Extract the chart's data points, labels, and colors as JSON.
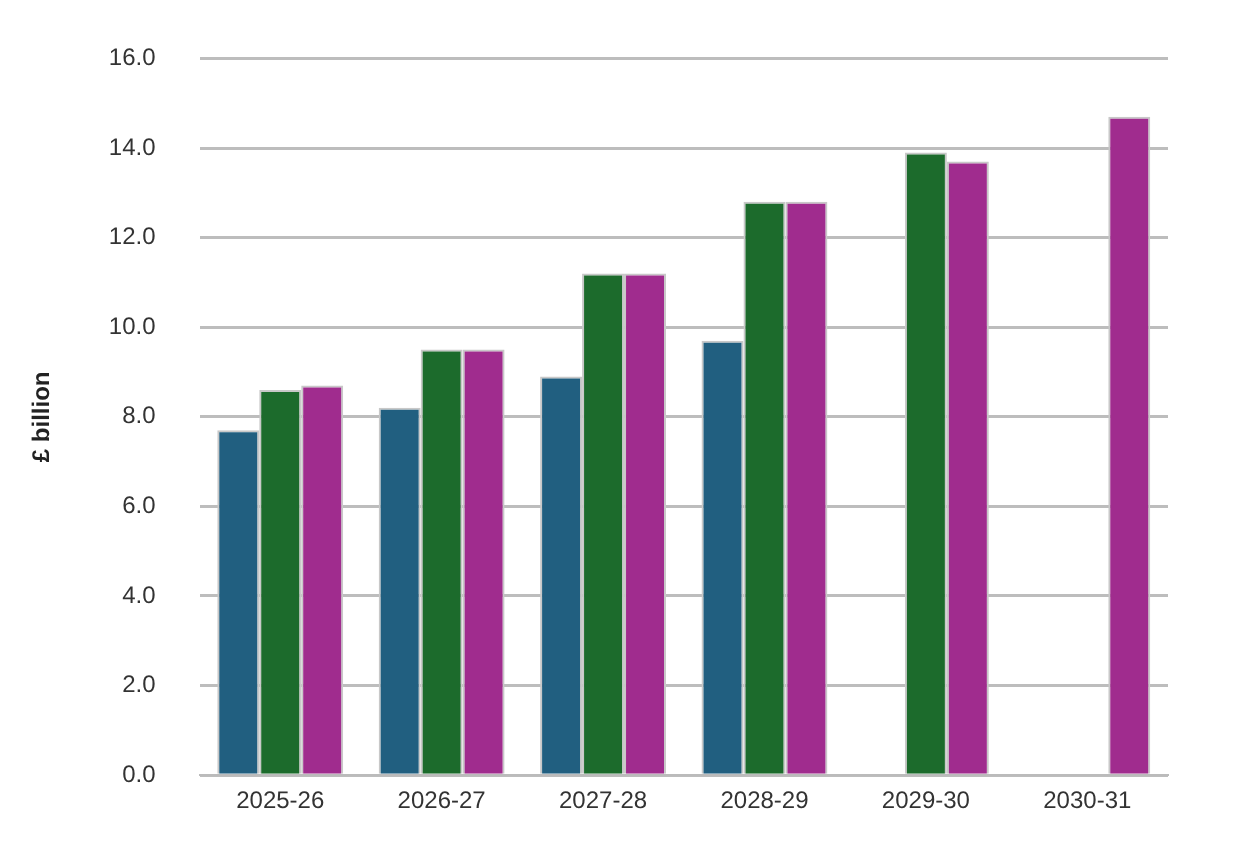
{
  "chart_data": {
    "type": "bar",
    "ylabel": "£ billion",
    "categories": [
      "2025-26",
      "2026-27",
      "2027-28",
      "2028-29",
      "2029-30",
      "2030-31"
    ],
    "series": [
      {
        "color": "#215f80",
        "values": [
          7.7,
          8.2,
          8.9,
          9.7,
          null,
          null
        ]
      },
      {
        "color": "#1c6b2c",
        "values": [
          8.6,
          9.5,
          11.2,
          12.8,
          13.9,
          null
        ]
      },
      {
        "color": "#a02c8e",
        "values": [
          8.7,
          9.5,
          11.2,
          12.8,
          13.7,
          14.7
        ]
      }
    ],
    "ylim": [
      0,
      16
    ],
    "yticks": [
      {
        "value": 0,
        "label": "0.0"
      },
      {
        "value": 2,
        "label": "2.0"
      },
      {
        "value": 4,
        "label": "4.0"
      },
      {
        "value": 6,
        "label": "6.0"
      },
      {
        "value": 8,
        "label": "8.0"
      },
      {
        "value": 10,
        "label": "10.0"
      },
      {
        "value": 12,
        "label": "12.0"
      },
      {
        "value": 14,
        "label": "14.0"
      },
      {
        "value": 16,
        "label": "16.0"
      }
    ],
    "grid": "y",
    "legend": false
  }
}
